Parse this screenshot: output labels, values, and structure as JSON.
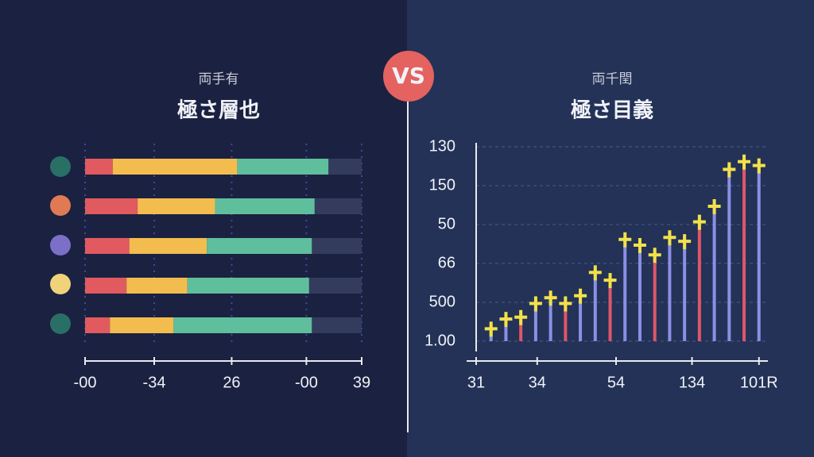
{
  "vs_badge": "VS",
  "chart_data": [
    {
      "type": "barh",
      "subtitle": "両手有",
      "title": "極さ層也",
      "categories": [
        null,
        null,
        null,
        null,
        null
      ],
      "series": [
        {
          "color": "#e05a5f",
          "values": [
            10,
            19,
            16,
            15,
            9
          ]
        },
        {
          "color": "#f2bd4e",
          "values": [
            45,
            28,
            28,
            22,
            23
          ]
        },
        {
          "color": "#5fbf9c",
          "values": [
            33,
            36,
            38,
            44,
            50
          ]
        },
        {
          "color": "#343c5e",
          "values": [
            12,
            17,
            18,
            19,
            18
          ]
        }
      ],
      "xlim": [
        0,
        100
      ],
      "xticks": [
        {
          "value": 0,
          "label": "-00"
        },
        {
          "value": 25,
          "label": "-34"
        },
        {
          "value": 53,
          "label": "26"
        },
        {
          "value": 80,
          "label": "-00"
        },
        {
          "value": 100,
          "label": "39"
        }
      ],
      "grid": true
    },
    {
      "type": "bar",
      "subtitle": "両千閏",
      "title": "極さ目義",
      "x": [
        1,
        2,
        3,
        4,
        5,
        6,
        7,
        8,
        9,
        10,
        11,
        12,
        13,
        14,
        15,
        16,
        17,
        18,
        19
      ],
      "values": [
        0.4,
        0.65,
        0.7,
        1.05,
        1.2,
        1.05,
        1.25,
        1.85,
        1.65,
        2.7,
        2.55,
        2.3,
        2.75,
        2.65,
        3.15,
        3.55,
        4.5,
        4.7,
        4.6
      ],
      "color": "#8b8fe6",
      "marker_color": "#f2e14a",
      "xlim": [
        0,
        19.6
      ],
      "xticks": [
        {
          "value": 0,
          "label": "31"
        },
        {
          "value": 4.1,
          "label": "34"
        },
        {
          "value": 9.4,
          "label": "54"
        },
        {
          "value": 14.5,
          "label": "134"
        },
        {
          "value": 19,
          "label": "101R"
        }
      ],
      "ylim": [
        0,
        5
      ],
      "yticks": [
        {
          "value": 0,
          "label": "1.00"
        },
        {
          "value": 1,
          "label": "500"
        },
        {
          "value": 2,
          "label": "66"
        },
        {
          "value": 3,
          "label": "50"
        },
        {
          "value": 4,
          "label": "150"
        },
        {
          "value": 5,
          "label": "130"
        }
      ],
      "grid": true
    }
  ]
}
